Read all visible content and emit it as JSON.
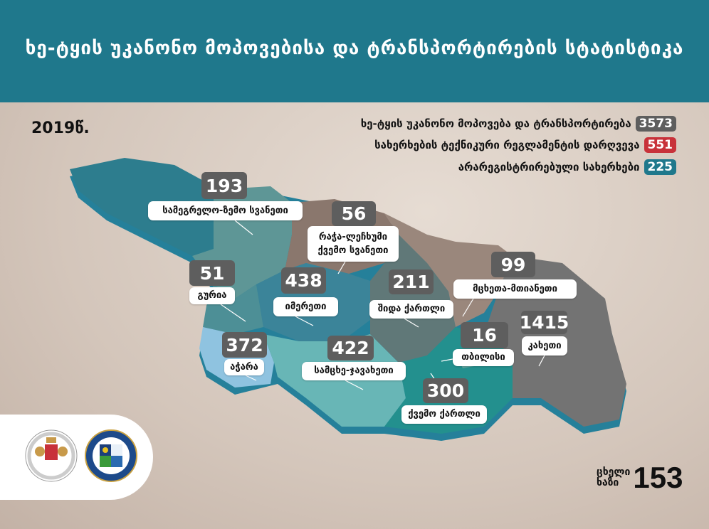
{
  "header": {
    "title": "ხე-ტყის უკანონო მოპოვებისა და ტრანსპორტირების სტატისტიკა"
  },
  "year": "2019წ.",
  "legend": [
    {
      "label": "ხე-ტყის უკანონო მოპოვება და ტრანსპორტირება",
      "value": "3573",
      "color": "#5e5e5e"
    },
    {
      "label": "სახერხების ტექნიკური რეგლამენტის დარღვევა",
      "value": "551",
      "color": "#c8323a"
    },
    {
      "label": "არარეგისტრირებული სახერხები",
      "value": "225",
      "color": "#1f788c"
    }
  ],
  "regions": {
    "samegrelo": {
      "name": "სამეგრელო-ზემო სვანეთი",
      "value": "193"
    },
    "racha": {
      "name": "რაჭა-ლეჩხუმი ქვემო სვანეთი",
      "value": "56"
    },
    "guria": {
      "name": "გურია",
      "value": "51"
    },
    "imereti": {
      "name": "იმერეთი",
      "value": "438"
    },
    "shida_kartli": {
      "name": "შიდა ქართლი",
      "value": "211"
    },
    "mtskheta": {
      "name": "მცხეთა-მთიანეთი",
      "value": "99"
    },
    "tbilisi": {
      "name": "თბილისი",
      "value": "16"
    },
    "kakheti": {
      "name": "კახეთი",
      "value": "1415"
    },
    "ajara": {
      "name": "აჭარა",
      "value": "372"
    },
    "samtskhe": {
      "name": "სამცხე-ჯავახეთი",
      "value": "422"
    },
    "kvemo_kartli": {
      "name": "ქვემო ქართლი",
      "value": "300"
    }
  },
  "hotline": {
    "label_line1": "ცხელი",
    "label_line2": "ხაზი",
    "number": "153"
  },
  "logos": {
    "ministry": "Ministry of Environmental Protection and Agriculture of Georgia"
  }
}
